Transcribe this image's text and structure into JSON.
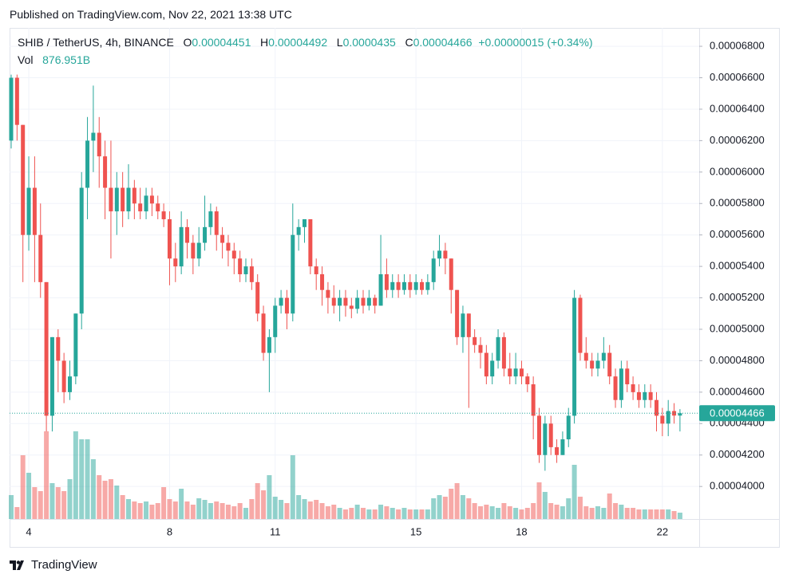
{
  "title": "Published on TradingView.com, Nov 22, 2021 13:38 UTC",
  "brand": "TradingView",
  "chart_data": {
    "type": "candlestick",
    "symbol": "SHIB / TetherUS, 4h, BINANCE",
    "ohlc_labels": [
      "O",
      "H",
      "L",
      "C"
    ],
    "change": "+0.00000015 (+0.34%)",
    "volume_label": "Vol",
    "volume_text": "876.951B",
    "up_color": "#26a69a",
    "down_color": "#ef5350",
    "grid": true,
    "categories": [
      null,
      null,
      null,
      "4",
      null,
      null,
      null,
      null,
      null,
      null,
      null,
      null,
      null,
      null,
      null,
      null,
      null,
      null,
      null,
      null,
      null,
      null,
      null,
      null,
      null,
      null,
      null,
      "8",
      null,
      null,
      null,
      null,
      null,
      null,
      null,
      null,
      null,
      null,
      null,
      null,
      null,
      null,
      null,
      null,
      null,
      "11",
      null,
      null,
      null,
      null,
      null,
      null,
      null,
      null,
      null,
      null,
      null,
      null,
      null,
      null,
      null,
      null,
      null,
      null,
      null,
      null,
      null,
      null,
      null,
      "15",
      null,
      null,
      null,
      null,
      null,
      null,
      null,
      null,
      null,
      null,
      null,
      null,
      null,
      null,
      null,
      null,
      null,
      "18",
      null,
      null,
      null,
      null,
      null,
      null,
      null,
      null,
      null,
      null,
      null,
      null,
      null,
      null,
      null,
      null,
      null,
      null,
      null,
      null,
      null,
      null,
      null,
      "22",
      null,
      null,
      null
    ],
    "open": [
      6.2e-05,
      6.6e-05,
      6.3e-05,
      5.6e-05,
      5.9e-05,
      5.6e-05,
      5.3e-05,
      4.45e-05,
      4.95e-05,
      4.8e-05,
      4.6e-05,
      4.7e-05,
      5.1e-05,
      5.9e-05,
      6.2e-05,
      6.25e-05,
      6.1e-05,
      5.9e-05,
      5.75e-05,
      5.9e-05,
      5.75e-05,
      5.9e-05,
      5.8e-05,
      5.75e-05,
      5.85e-05,
      5.8e-05,
      5.75e-05,
      5.7e-05,
      5.45e-05,
      5.4e-05,
      5.65e-05,
      5.55e-05,
      5.45e-05,
      5.55e-05,
      5.65e-05,
      5.75e-05,
      5.6e-05,
      5.55e-05,
      5.5e-05,
      5.45e-05,
      5.35e-05,
      5.4e-05,
      5.3e-05,
      5.1e-05,
      4.85e-05,
      4.95e-05,
      5.15e-05,
      5.2e-05,
      5.1e-05,
      5.6e-05,
      5.65e-05,
      5.7e-05,
      5.4e-05,
      5.35e-05,
      5.25e-05,
      5.2e-05,
      5.15e-05,
      5.2e-05,
      5.15e-05,
      5.13e-05,
      5.2e-05,
      5.15e-05,
      5.2e-05,
      5.15e-05,
      5.35e-05,
      5.25e-05,
      5.3e-05,
      5.25e-05,
      5.3e-05,
      5.25e-05,
      5.3e-05,
      5.25e-05,
      5.3e-05,
      5.45e-05,
      5.5e-05,
      5.45e-05,
      5.25e-05,
      4.95e-05,
      5.1e-05,
      4.95e-05,
      4.9e-05,
      4.85e-05,
      4.7e-05,
      4.8e-05,
      4.95e-05,
      4.75e-05,
      4.7e-05,
      4.75e-05,
      4.7e-05,
      4.65e-05,
      4.45e-05,
      4.2e-05,
      4.4e-05,
      4.25e-05,
      4.2e-05,
      4.3e-05,
      4.45e-05,
      5.2e-05,
      4.85e-05,
      4.8e-05,
      4.75e-05,
      4.8e-05,
      4.85e-05,
      4.7e-05,
      4.55e-05,
      4.75e-05,
      4.65e-05,
      4.6e-05,
      4.55e-05,
      4.6e-05,
      4.55e-05,
      4.45e-05,
      4.4e-05,
      4.48e-05,
      4.451e-05
    ],
    "high": [
      6.62e-05,
      6.62e-05,
      6.3e-05,
      6.1e-05,
      6.1e-05,
      5.8e-05,
      5.3e-05,
      4.95e-05,
      5e-05,
      4.85e-05,
      4.8e-05,
      5.1e-05,
      6e-05,
      6.35e-05,
      6.55e-05,
      6.35e-05,
      6.2e-05,
      6.2e-05,
      6e-05,
      6e-05,
      6.05e-05,
      5.95e-05,
      5.9e-05,
      5.9e-05,
      5.9e-05,
      5.85e-05,
      5.8e-05,
      5.75e-05,
      5.55e-05,
      5.75e-05,
      5.7e-05,
      5.6e-05,
      5.65e-05,
      5.85e-05,
      5.8e-05,
      5.78e-05,
      5.65e-05,
      5.6e-05,
      5.55e-05,
      5.5e-05,
      5.45e-05,
      5.45e-05,
      5.35e-05,
      5.15e-05,
      5e-05,
      5.2e-05,
      5.25e-05,
      5.25e-05,
      5.8e-05,
      5.7e-05,
      5.7e-05,
      5.7e-05,
      5.45e-05,
      5.4e-05,
      5.3e-05,
      5.28e-05,
      5.25e-05,
      5.25e-05,
      5.2e-05,
      5.25e-05,
      5.25e-05,
      5.25e-05,
      5.22e-05,
      5.6e-05,
      5.45e-05,
      5.35e-05,
      5.35e-05,
      5.35e-05,
      5.35e-05,
      5.35e-05,
      5.32e-05,
      5.35e-05,
      5.5e-05,
      5.6e-05,
      5.55e-05,
      5.45e-05,
      5.25e-05,
      5.15e-05,
      5.1e-05,
      5e-05,
      4.95e-05,
      4.9e-05,
      4.85e-05,
      5e-05,
      4.98e-05,
      4.85e-05,
      4.85e-05,
      4.8e-05,
      4.72e-05,
      4.7e-05,
      4.5e-05,
      4.45e-05,
      4.45e-05,
      4.3e-05,
      4.35e-05,
      4.5e-05,
      5.25e-05,
      5.22e-05,
      4.95e-05,
      4.85e-05,
      4.85e-05,
      4.95e-05,
      4.9e-05,
      4.75e-05,
      4.8e-05,
      4.8e-05,
      4.7e-05,
      4.65e-05,
      4.65e-05,
      4.65e-05,
      4.6e-05,
      4.5e-05,
      4.55e-05,
      4.53e-05,
      4.492e-05
    ],
    "low": [
      6.15e-05,
      6.2e-05,
      5.3e-05,
      5.5e-05,
      5.3e-05,
      5.2e-05,
      4.35e-05,
      4.35e-05,
      4.6e-05,
      4.53e-05,
      4.55e-05,
      4.65e-05,
      5e-05,
      5.7e-05,
      6e-05,
      5.9e-05,
      5.7e-05,
      5.45e-05,
      5.6e-05,
      5.65e-05,
      5.7e-05,
      5.7e-05,
      5.7e-05,
      5.7e-05,
      5.72e-05,
      5.7e-05,
      5.65e-05,
      5.28e-05,
      5.3e-05,
      5.35e-05,
      5.45e-05,
      5.35e-05,
      5.4e-05,
      5.5e-05,
      5.6e-05,
      5.5e-05,
      5.45e-05,
      5.4e-05,
      5.35e-05,
      5.3e-05,
      5.3e-05,
      5.25e-05,
      5.05e-05,
      4.8e-05,
      4.6e-05,
      4.85e-05,
      5.1e-05,
      5e-05,
      5.05e-05,
      5.5e-05,
      5.55e-05,
      5.35e-05,
      5.25e-05,
      5.15e-05,
      5.1e-05,
      5.1e-05,
      5.05e-05,
      5.08e-05,
      5.07e-05,
      5.1e-05,
      5.1e-05,
      5.12e-05,
      5.1e-05,
      5.15e-05,
      5.2e-05,
      5.2e-05,
      5.2e-05,
      5.22e-05,
      5.2e-05,
      5.22e-05,
      5.22e-05,
      5.22e-05,
      5.25e-05,
      5.4e-05,
      5.35e-05,
      5.1e-05,
      4.9e-05,
      4.85e-05,
      4.5e-05,
      4.85e-05,
      4.75e-05,
      4.65e-05,
      4.65e-05,
      4.75e-05,
      4.7e-05,
      4.65e-05,
      4.65e-05,
      4.65e-05,
      4.6e-05,
      4.3e-05,
      4.15e-05,
      4.1e-05,
      4.2e-05,
      4.15e-05,
      4.2e-05,
      4.25e-05,
      4.4e-05,
      4.8e-05,
      4.75e-05,
      4.7e-05,
      4.7e-05,
      4.75e-05,
      4.65e-05,
      4.5e-05,
      4.5e-05,
      4.6e-05,
      4.55e-05,
      4.5e-05,
      4.5e-05,
      4.5e-05,
      4.35e-05,
      4.32e-05,
      4.32e-05,
      4.4e-05,
      4.35e-05
    ],
    "close": [
      6.6e-05,
      6.3e-05,
      5.6e-05,
      5.9e-05,
      5.6e-05,
      5.3e-05,
      4.45e-05,
      4.95e-05,
      4.8e-05,
      4.6e-05,
      4.7e-05,
      5.1e-05,
      5.9e-05,
      6.2e-05,
      6.25e-05,
      6.1e-05,
      5.9e-05,
      5.75e-05,
      5.9e-05,
      5.75e-05,
      5.9e-05,
      5.8e-05,
      5.75e-05,
      5.85e-05,
      5.8e-05,
      5.75e-05,
      5.7e-05,
      5.45e-05,
      5.4e-05,
      5.65e-05,
      5.55e-05,
      5.45e-05,
      5.55e-05,
      5.65e-05,
      5.75e-05,
      5.6e-05,
      5.55e-05,
      5.5e-05,
      5.45e-05,
      5.35e-05,
      5.4e-05,
      5.3e-05,
      5.1e-05,
      4.85e-05,
      4.95e-05,
      5.15e-05,
      5.2e-05,
      5.1e-05,
      5.6e-05,
      5.65e-05,
      5.7e-05,
      5.4e-05,
      5.35e-05,
      5.25e-05,
      5.2e-05,
      5.15e-05,
      5.2e-05,
      5.15e-05,
      5.13e-05,
      5.2e-05,
      5.15e-05,
      5.2e-05,
      5.15e-05,
      5.35e-05,
      5.25e-05,
      5.3e-05,
      5.25e-05,
      5.3e-05,
      5.25e-05,
      5.3e-05,
      5.25e-05,
      5.3e-05,
      5.45e-05,
      5.5e-05,
      5.45e-05,
      5.25e-05,
      4.95e-05,
      5.1e-05,
      4.95e-05,
      4.9e-05,
      4.85e-05,
      4.7e-05,
      4.8e-05,
      4.95e-05,
      4.75e-05,
      4.7e-05,
      4.75e-05,
      4.7e-05,
      4.65e-05,
      4.45e-05,
      4.2e-05,
      4.4e-05,
      4.25e-05,
      4.2e-05,
      4.3e-05,
      4.45e-05,
      5.2e-05,
      4.85e-05,
      4.8e-05,
      4.75e-05,
      4.8e-05,
      4.85e-05,
      4.7e-05,
      4.55e-05,
      4.75e-05,
      4.65e-05,
      4.6e-05,
      4.55e-05,
      4.6e-05,
      4.55e-05,
      4.45e-05,
      4.4e-05,
      4.48e-05,
      4.451e-05,
      4.466e-05
    ],
    "volume": [
      3300,
      1650,
      8800,
      6380,
      4400,
      3850,
      12100,
      4950,
      4400,
      3850,
      5500,
      12100,
      11000,
      11000,
      8250,
      6050,
      5280,
      5500,
      4620,
      3300,
      2750,
      2420,
      2200,
      2420,
      1980,
      2200,
      4400,
      2750,
      2420,
      4180,
      2420,
      1980,
      2860,
      2640,
      2200,
      2420,
      2200,
      1980,
      1760,
      2200,
      1540,
      2750,
      4950,
      3960,
      6050,
      3080,
      2640,
      2200,
      8800,
      3300,
      2750,
      2420,
      2640,
      2200,
      1760,
      1980,
      1540,
      1320,
      1540,
      1980,
      1540,
      1320,
      1320,
      1980,
      1760,
      1540,
      1320,
      1540,
      1320,
      1320,
      1320,
      1320,
      2860,
      3300,
      3080,
      4180,
      4950,
      3300,
      2860,
      2200,
      1760,
      1980,
      1760,
      1540,
      2200,
      1760,
      1540,
      1320,
      1540,
      2200,
      5060,
      3740,
      2200,
      1980,
      1760,
      2860,
      7480,
      3080,
      1760,
      1540,
      1760,
      1540,
      3520,
      2200,
      1980,
      1540,
      1540,
      1320,
      1320,
      1320,
      1320,
      1320,
      1320,
      1100,
      876.951
    ],
    "ylim": [
      3.793e-05,
      6.917e-05
    ],
    "yticks": [
      {
        "value": 4e-05,
        "label": "0.00004000"
      },
      {
        "value": 4.2e-05,
        "label": "0.00004200"
      },
      {
        "value": 4.4e-05,
        "label": "0.00004400"
      },
      {
        "value": 4.6e-05,
        "label": "0.00004600"
      },
      {
        "value": 4.8e-05,
        "label": "0.00004800"
      },
      {
        "value": 5e-05,
        "label": "0.00005000"
      },
      {
        "value": 5.2e-05,
        "label": "0.00005200"
      },
      {
        "value": 5.4e-05,
        "label": "0.00005400"
      },
      {
        "value": 5.6e-05,
        "label": "0.00005600"
      },
      {
        "value": 5.8e-05,
        "label": "0.00005800"
      },
      {
        "value": 6e-05,
        "label": "0.00006000"
      },
      {
        "value": 6.2e-05,
        "label": "0.00006200"
      },
      {
        "value": 6.4e-05,
        "label": "0.00006400"
      },
      {
        "value": 6.6e-05,
        "label": "0.00006600"
      },
      {
        "value": 6.8e-05,
        "label": "0.00006800"
      }
    ]
  }
}
